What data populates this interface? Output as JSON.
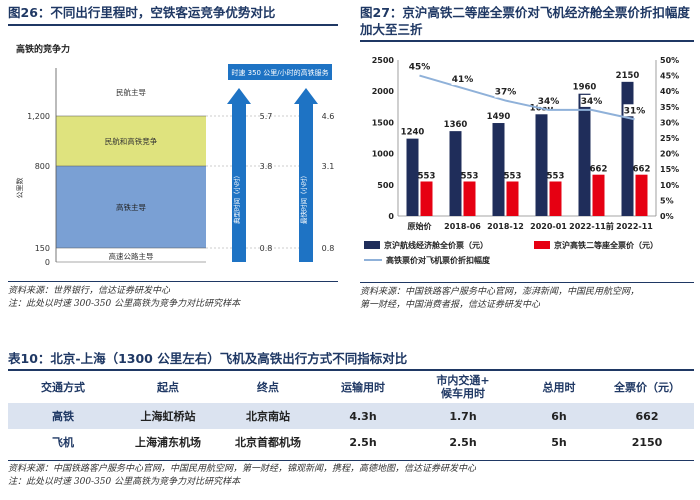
{
  "fig26": {
    "title": "图26：不同出行里程时，空铁客运竞争优势对比",
    "ylabel": "高铁的竞争力",
    "axis_unit": "公里数",
    "ticks": [
      "1,200",
      "800",
      "150",
      "0"
    ],
    "zones": {
      "air": "民航主导",
      "mixed": "民航和高铁竞争",
      "rail": "高铁主导",
      "road": "高速公路主导"
    },
    "speed_label": "时速 350 公里/小时的高铁服务",
    "arrow1": "典型时间（小时）",
    "arrow2": "最快时间（小时）",
    "col1": [
      "5.7",
      "3.8",
      "0.8"
    ],
    "col2": [
      "4.6",
      "3.1",
      "0.8"
    ],
    "colors": {
      "air": "#ffffff",
      "mixed": "#dfe37e",
      "rail": "#7aa0d4",
      "road": "#ffffff",
      "arrow": "#1e73c4"
    }
  },
  "fig26_source": {
    "line1": "资料来源：世界银行，信达证券研发中心",
    "line2": "注：此处以时速 300-350 公里高铁为竞争力对比研究样本"
  },
  "fig27": {
    "title_line1": "图27：京沪高铁二等座全票价对飞机经济舱全票价折扣幅度",
    "title_line2": "加大至三折",
    "legend_bar1": "京沪航线经济舱全价票（元）",
    "legend_bar2": "京沪高铁二等座全票价（元）",
    "legend_line": "高铁票价对飞机票价折扣幅度"
  },
  "chart_data": {
    "type": "bar",
    "categories": [
      "原始价",
      "2018-06",
      "2018-12",
      "2020-01",
      "2022-11前",
      "2022-11"
    ],
    "series": [
      {
        "name": "京沪航线经济舱全价票（元）",
        "values": [
          1240,
          1360,
          1490,
          1630,
          1960,
          2150
        ],
        "color": "#1f2d5a"
      },
      {
        "name": "京沪高铁二等座全票价（元）",
        "values": [
          553,
          553,
          553,
          553,
          662,
          662
        ],
        "color": "#e60012"
      },
      {
        "name": "高铁票价对飞机票价折扣幅度",
        "type": "line",
        "axis": "right",
        "values": [
          45,
          41,
          37,
          34,
          34,
          31
        ],
        "labels": [
          "45%",
          "41%",
          "37%",
          "34%",
          "34%",
          "31%"
        ],
        "color": "#8fb1d9"
      }
    ],
    "ylim": [
      0,
      2500
    ],
    "yticks": [
      "0",
      "500",
      "1000",
      "1500",
      "2000",
      "2500"
    ],
    "y2lim": [
      0,
      50
    ],
    "y2ticks": [
      "0%",
      "5%",
      "10%",
      "15%",
      "20%",
      "25%",
      "30%",
      "35%",
      "40%",
      "45%",
      "50%"
    ],
    "legend": "bottom"
  },
  "fig27_source": {
    "line1": "资料来源：中国铁路客户服务中心官网，澎湃新闻，中国民用航空网，",
    "line2": "第一财经，中国消费者报，信达证券研发中心"
  },
  "table10": {
    "title": "表10：北京-上海（1300 公里左右）飞机及高铁出行方式不同指标对比",
    "headers": [
      "交通方式",
      "起点",
      "终点",
      "运输用时",
      "市内交通+\n候车用时",
      "总用时",
      "全票价（元）"
    ],
    "rows": [
      [
        "高铁",
        "上海虹桥站",
        "北京南站",
        "4.3h",
        "1.7h",
        "6h",
        "662"
      ],
      [
        "飞机",
        "上海浦东机场",
        "北京首都机场",
        "2.5h",
        "2.5h",
        "5h",
        "2150"
      ]
    ]
  },
  "table10_source": {
    "line1": "资料来源：中国铁路客户服务中心官网，中国民用航空网，第一财经，锦观新闻，携程，高德地图，信达证券研发中心",
    "line2": "注：此处以时速 300-350 公里高铁为竞争力对比研究样本"
  }
}
